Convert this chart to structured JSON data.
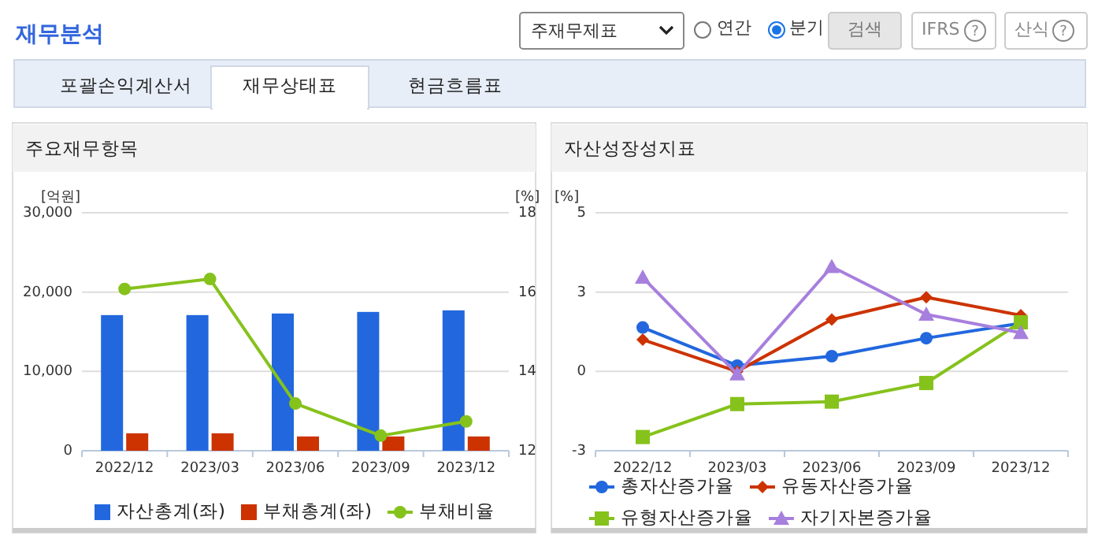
{
  "chart_data": [
    {
      "type": "other",
      "title": "재무분석",
      "annotations": [
        "주재무제표",
        "연간",
        "분기",
        "검색",
        "IFRS",
        "?",
        "산식",
        "?",
        "포괄손익계산서",
        "재무상태표",
        "현금흐름표"
      ]
    },
    {
      "type": "bar",
      "title": "주요재무항목",
      "categories": [
        "2022/12",
        "2023/03",
        "2023/06",
        "2023/09",
        "2023/12"
      ],
      "ylabel": "[억원]",
      "y2label": "[%]",
      "ylim": [
        0,
        30000
      ],
      "yticks": [
        0,
        {
          "value": 10000,
          "label": "10,000"
        },
        {
          "value": 20000,
          "label": "20,000"
        },
        {
          "value": 30000,
          "label": "30,000"
        }
      ],
      "y2lim": [
        12,
        18
      ],
      "y2ticks": [
        12,
        14,
        16,
        18
      ],
      "grid": "y",
      "legend": "bottom",
      "series": [
        {
          "name": "자산총계(좌)",
          "color": "#2267dd",
          "values": [
            17100,
            17100,
            17300,
            17500,
            17700
          ]
        },
        {
          "name": "부채총계(좌)",
          "color": "#cc3300",
          "values": [
            2200,
            2200,
            1800,
            1800,
            1800
          ]
        },
        {
          "name": "부채비율",
          "type": "line",
          "axis": "y2",
          "marker": "circle",
          "color": "#86c21c",
          "values": [
            16.08,
            16.33,
            13.19,
            12.38,
            12.74
          ]
        }
      ]
    },
    {
      "type": "line",
      "title": "자산성장성지표",
      "categories": [
        "2022/12",
        "2023/03",
        "2023/06",
        "2023/09",
        "2023/12"
      ],
      "ylabel": "[%]",
      "ylim": [
        -2.6,
        5.2
      ],
      "yticks": [
        {
          "value": -2.6,
          "label": "-3"
        },
        {
          "value": 0,
          "label": "0"
        },
        {
          "value": 2.6,
          "label": "3"
        },
        {
          "value": 5.2,
          "label": "5"
        }
      ],
      "grid": "y",
      "legend": "bottom",
      "series": [
        {
          "name": "총자산증가율",
          "marker": "circle",
          "color": "#2267dd",
          "values": [
            1.44,
            0.19,
            0.5,
            1.09,
            1.58
          ]
        },
        {
          "name": "유동자산증가율",
          "marker": "diamond",
          "color": "#cc3300",
          "values": [
            1.04,
            0,
            1.7,
            2.43,
            1.84
          ]
        },
        {
          "name": "유형자산증가율",
          "marker": "square",
          "color": "#86c21c",
          "values": [
            -2.15,
            -1.07,
            -0.99,
            -0.38,
            1.61
          ]
        },
        {
          "name": "자기자본증가율",
          "marker": "triangle",
          "color": "#a77fdd",
          "values": [
            3.08,
            -0.09,
            3.43,
            1.87,
            1.27
          ]
        }
      ]
    }
  ]
}
